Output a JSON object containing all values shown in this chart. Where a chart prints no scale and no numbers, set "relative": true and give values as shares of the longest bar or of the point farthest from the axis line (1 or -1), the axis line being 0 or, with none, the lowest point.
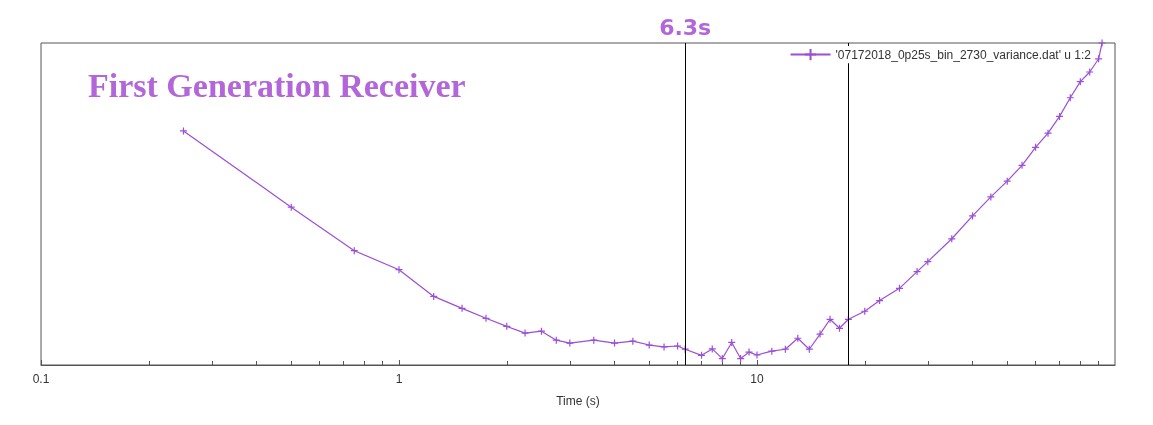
{
  "chart_data": {
    "type": "line",
    "title": "First Generation Receiver",
    "xlabel": "Time (s)",
    "log": "x",
    "relative": true,
    "xlim": [
      0.1,
      100
    ],
    "xticks": [
      0.1,
      1,
      10
    ],
    "grid": false,
    "legend": "top right",
    "marker": "cross",
    "line_style": "solid",
    "ref_lines": [
      {
        "axis": "x",
        "value": 6.3,
        "label": "6.3s"
      },
      {
        "axis": "x",
        "value": 18,
        "label": null
      }
    ],
    "series": [
      {
        "name": "'07172018_0p25s_bin_2730_variance.dat' u 1:2",
        "color": "#9b4fd6",
        "x": [
          0.25,
          0.5,
          0.75,
          1,
          1.25,
          1.5,
          1.75,
          2,
          2.25,
          2.5,
          2.75,
          3,
          3.5,
          4,
          4.5,
          5,
          5.5,
          6,
          6.3,
          7,
          7.5,
          8,
          8.5,
          9,
          9.5,
          10,
          11,
          12,
          13,
          14,
          15,
          16,
          17,
          18,
          20,
          22,
          25,
          28,
          30,
          35,
          40,
          45,
          50,
          55,
          60,
          65,
          70,
          75,
          80,
          85,
          90,
          92
        ],
        "values": [
          0.727,
          0.49,
          0.355,
          0.296,
          0.213,
          0.176,
          0.145,
          0.12,
          0.099,
          0.105,
          0.077,
          0.068,
          0.077,
          0.068,
          0.074,
          0.062,
          0.056,
          0.059,
          0.049,
          0.03,
          0.05,
          0.02,
          0.07,
          0.02,
          0.04,
          0.031,
          0.043,
          0.049,
          0.083,
          0.049,
          0.096,
          0.142,
          0.114,
          0.142,
          0.167,
          0.2,
          0.238,
          0.29,
          0.321,
          0.392,
          0.463,
          0.522,
          0.571,
          0.62,
          0.676,
          0.72,
          0.772,
          0.83,
          0.88,
          0.91,
          0.951,
          1
        ]
      }
    ]
  }
}
